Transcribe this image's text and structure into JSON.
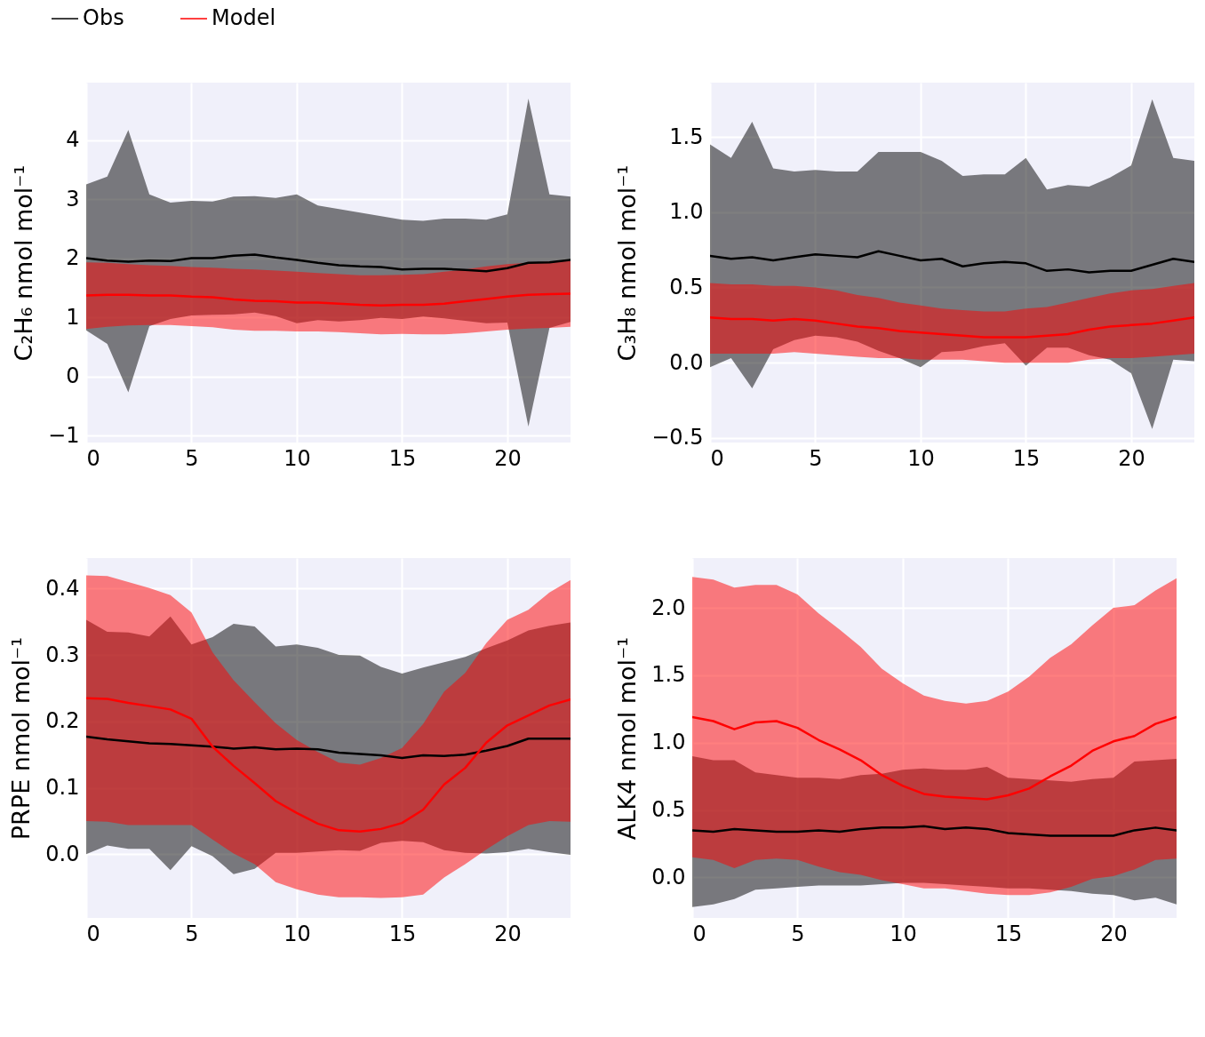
{
  "chart_data": [
    {
      "type": "line",
      "ylabel": "C₂H₆ nmol mol⁻¹",
      "legend": "top left",
      "grid": true,
      "x": [
        0,
        1,
        2,
        3,
        4,
        5,
        6,
        7,
        8,
        9,
        10,
        11,
        12,
        13,
        14,
        15,
        16,
        17,
        18,
        19,
        20,
        21,
        22,
        23
      ],
      "xlim": [
        0,
        23
      ],
      "xticks": [
        0,
        5,
        10,
        15,
        20
      ],
      "ylim": [
        -1.12,
        4.97
      ],
      "yticks": [
        {
          "value": -1,
          "label": "−1"
        },
        0,
        1,
        2,
        3,
        4
      ],
      "series": [
        {
          "name": "Obs",
          "color": "#000000",
          "values": [
            2.0,
            1.96,
            1.94,
            1.96,
            1.95,
            2.0,
            2.0,
            2.04,
            2.06,
            2.01,
            1.97,
            1.92,
            1.88,
            1.86,
            1.85,
            1.81,
            1.82,
            1.82,
            1.8,
            1.78,
            1.83,
            1.92,
            1.93,
            1.97
          ],
          "upper": [
            3.25,
            3.38,
            4.17,
            3.08,
            2.94,
            2.97,
            2.96,
            3.04,
            3.05,
            3.02,
            3.08,
            2.89,
            2.83,
            2.77,
            2.71,
            2.65,
            2.63,
            2.67,
            2.67,
            2.65,
            2.74,
            4.7,
            3.08,
            3.04
          ],
          "lower": [
            0.78,
            0.55,
            -0.27,
            0.85,
            0.97,
            1.03,
            1.04,
            1.05,
            1.08,
            1.02,
            0.9,
            0.95,
            0.93,
            0.95,
            0.99,
            0.97,
            1.01,
            0.98,
            0.94,
            0.9,
            0.91,
            -0.85,
            0.82,
            0.92
          ]
        },
        {
          "name": "Model",
          "color": "#ff0000",
          "values": [
            1.37,
            1.38,
            1.38,
            1.37,
            1.37,
            1.35,
            1.34,
            1.3,
            1.28,
            1.27,
            1.25,
            1.25,
            1.23,
            1.21,
            1.2,
            1.21,
            1.21,
            1.23,
            1.27,
            1.31,
            1.35,
            1.38,
            1.39,
            1.4
          ],
          "upper": [
            1.93,
            1.92,
            1.9,
            1.88,
            1.87,
            1.85,
            1.84,
            1.82,
            1.81,
            1.79,
            1.77,
            1.75,
            1.73,
            1.71,
            1.71,
            1.72,
            1.73,
            1.77,
            1.81,
            1.86,
            1.9,
            1.92,
            1.94,
            1.97
          ],
          "lower": [
            0.8,
            0.84,
            0.86,
            0.87,
            0.87,
            0.85,
            0.83,
            0.79,
            0.77,
            0.77,
            0.76,
            0.76,
            0.75,
            0.73,
            0.71,
            0.72,
            0.71,
            0.71,
            0.73,
            0.76,
            0.79,
            0.81,
            0.82,
            0.84
          ]
        }
      ]
    },
    {
      "type": "line",
      "ylabel": "C₃H₈ nmol mol⁻¹",
      "grid": true,
      "x": [
        0,
        1,
        2,
        3,
        4,
        5,
        6,
        7,
        8,
        9,
        10,
        11,
        12,
        13,
        14,
        15,
        16,
        17,
        18,
        19,
        20,
        21,
        22,
        23
      ],
      "xlim": [
        0,
        23
      ],
      "xticks": [
        0,
        5,
        10,
        15,
        20
      ],
      "ylim": [
        -0.53,
        1.86
      ],
      "yticks": [
        {
          "value": -0.5,
          "label": "−0.5"
        },
        {
          "value": 0,
          "label": "0.0"
        },
        0.5,
        {
          "value": 1,
          "label": "1.0"
        },
        1.5
      ],
      "series": [
        {
          "color": "#000000",
          "values": [
            0.71,
            0.69,
            0.7,
            0.68,
            0.7,
            0.72,
            0.71,
            0.7,
            0.74,
            0.71,
            0.68,
            0.69,
            0.64,
            0.66,
            0.67,
            0.66,
            0.61,
            0.62,
            0.6,
            0.61,
            0.61,
            0.65,
            0.69,
            0.67
          ],
          "upper": [
            1.45,
            1.36,
            1.6,
            1.29,
            1.27,
            1.28,
            1.27,
            1.27,
            1.4,
            1.4,
            1.4,
            1.34,
            1.24,
            1.25,
            1.25,
            1.36,
            1.15,
            1.18,
            1.17,
            1.23,
            1.31,
            1.75,
            1.36,
            1.34
          ],
          "lower": [
            -0.03,
            0.03,
            -0.17,
            0.09,
            0.15,
            0.18,
            0.17,
            0.14,
            0.08,
            0.03,
            -0.03,
            0.07,
            0.08,
            0.11,
            0.13,
            -0.02,
            0.1,
            0.1,
            0.05,
            0.02,
            -0.07,
            -0.44,
            0.02,
            0.01
          ]
        },
        {
          "color": "#ff0000",
          "values": [
            0.3,
            0.29,
            0.29,
            0.28,
            0.29,
            0.28,
            0.26,
            0.24,
            0.23,
            0.21,
            0.2,
            0.19,
            0.18,
            0.17,
            0.17,
            0.17,
            0.18,
            0.19,
            0.22,
            0.24,
            0.25,
            0.26,
            0.28,
            0.3
          ],
          "upper": [
            0.53,
            0.52,
            0.52,
            0.51,
            0.51,
            0.5,
            0.48,
            0.45,
            0.43,
            0.4,
            0.38,
            0.36,
            0.35,
            0.34,
            0.34,
            0.36,
            0.37,
            0.4,
            0.43,
            0.46,
            0.48,
            0.49,
            0.51,
            0.53
          ],
          "lower": [
            0.06,
            0.06,
            0.06,
            0.06,
            0.07,
            0.06,
            0.05,
            0.04,
            0.03,
            0.03,
            0.02,
            0.02,
            0.02,
            0.01,
            0.0,
            0.0,
            0.0,
            0.0,
            0.02,
            0.03,
            0.03,
            0.04,
            0.05,
            0.06
          ]
        }
      ]
    },
    {
      "type": "line",
      "ylabel": "PRPE nmol mol⁻¹",
      "grid": true,
      "x": [
        0,
        1,
        2,
        3,
        4,
        5,
        6,
        7,
        8,
        9,
        10,
        11,
        12,
        13,
        14,
        15,
        16,
        17,
        18,
        19,
        20,
        21,
        22,
        23
      ],
      "xlim": [
        0,
        23
      ],
      "xticks": [
        0,
        5,
        10,
        15,
        20
      ],
      "ylim": [
        -0.096,
        0.446
      ],
      "yticks": [
        {
          "value": 0,
          "label": "0.0"
        },
        0.1,
        0.2,
        0.3,
        0.4
      ],
      "series": [
        {
          "color": "#000000",
          "values": [
            0.177,
            0.173,
            0.17,
            0.167,
            0.166,
            0.164,
            0.162,
            0.159,
            0.161,
            0.158,
            0.159,
            0.158,
            0.153,
            0.151,
            0.149,
            0.145,
            0.149,
            0.148,
            0.15,
            0.156,
            0.163,
            0.174,
            0.174,
            0.174
          ],
          "upper": [
            0.353,
            0.335,
            0.334,
            0.328,
            0.358,
            0.316,
            0.327,
            0.347,
            0.343,
            0.313,
            0.316,
            0.311,
            0.3,
            0.299,
            0.282,
            0.272,
            0.281,
            0.289,
            0.297,
            0.31,
            0.322,
            0.337,
            0.344,
            0.349
          ],
          "lower": [
            0.0,
            0.013,
            0.008,
            0.008,
            -0.024,
            0.012,
            -0.003,
            -0.03,
            -0.022,
            0.002,
            0.002,
            0.004,
            0.006,
            0.005,
            0.017,
            0.02,
            0.018,
            0.006,
            0.002,
            0.001,
            0.003,
            0.008,
            0.003,
            -0.001
          ]
        },
        {
          "color": "#ff0000",
          "values": [
            0.235,
            0.234,
            0.228,
            0.223,
            0.218,
            0.204,
            0.162,
            0.133,
            0.107,
            0.08,
            0.062,
            0.046,
            0.036,
            0.034,
            0.038,
            0.047,
            0.067,
            0.105,
            0.13,
            0.168,
            0.194,
            0.209,
            0.224,
            0.233
          ],
          "upper": [
            0.42,
            0.419,
            0.41,
            0.401,
            0.39,
            0.364,
            0.304,
            0.262,
            0.229,
            0.197,
            0.172,
            0.154,
            0.138,
            0.135,
            0.145,
            0.16,
            0.196,
            0.245,
            0.273,
            0.318,
            0.353,
            0.368,
            0.394,
            0.413
          ],
          "lower": [
            0.05,
            0.049,
            0.044,
            0.044,
            0.044,
            0.044,
            0.022,
            0.001,
            -0.015,
            -0.042,
            -0.053,
            -0.061,
            -0.065,
            -0.065,
            -0.066,
            -0.065,
            -0.061,
            -0.035,
            -0.015,
            0.007,
            0.027,
            0.044,
            0.05,
            0.049
          ]
        }
      ]
    },
    {
      "type": "line",
      "ylabel": "ALK4 nmol mol⁻¹",
      "grid": true,
      "x": [
        0,
        1,
        2,
        3,
        4,
        5,
        6,
        7,
        8,
        9,
        10,
        11,
        12,
        13,
        14,
        15,
        16,
        17,
        18,
        19,
        20,
        21,
        22,
        23
      ],
      "xlim": [
        0,
        23
      ],
      "xticks": [
        0,
        5,
        10,
        15,
        20
      ],
      "ylim": [
        -0.3,
        2.37
      ],
      "yticks": [
        {
          "value": 0,
          "label": "0.0"
        },
        0.5,
        {
          "value": 1,
          "label": "1.0"
        },
        1.5,
        {
          "value": 2,
          "label": "2.0"
        }
      ],
      "series": [
        {
          "color": "#000000",
          "values": [
            0.35,
            0.34,
            0.36,
            0.35,
            0.34,
            0.34,
            0.35,
            0.34,
            0.36,
            0.37,
            0.37,
            0.38,
            0.36,
            0.37,
            0.36,
            0.33,
            0.32,
            0.31,
            0.31,
            0.31,
            0.31,
            0.35,
            0.37,
            0.35
          ],
          "upper": [
            0.9,
            0.87,
            0.87,
            0.78,
            0.76,
            0.74,
            0.74,
            0.73,
            0.76,
            0.77,
            0.8,
            0.81,
            0.8,
            0.8,
            0.82,
            0.74,
            0.73,
            0.72,
            0.71,
            0.73,
            0.74,
            0.86,
            0.87,
            0.88
          ],
          "lower": [
            -0.22,
            -0.2,
            -0.16,
            -0.09,
            -0.08,
            -0.07,
            -0.06,
            -0.06,
            -0.06,
            -0.05,
            -0.04,
            -0.04,
            -0.05,
            -0.06,
            -0.07,
            -0.08,
            -0.08,
            -0.09,
            -0.1,
            -0.12,
            -0.13,
            -0.17,
            -0.15,
            -0.2
          ]
        },
        {
          "color": "#ff0000",
          "values": [
            1.19,
            1.16,
            1.1,
            1.15,
            1.16,
            1.11,
            1.02,
            0.95,
            0.87,
            0.76,
            0.68,
            0.62,
            0.6,
            0.59,
            0.58,
            0.61,
            0.66,
            0.75,
            0.83,
            0.94,
            1.01,
            1.05,
            1.14,
            1.19
          ],
          "upper": [
            2.23,
            2.21,
            2.15,
            2.17,
            2.17,
            2.1,
            1.96,
            1.84,
            1.71,
            1.55,
            1.44,
            1.35,
            1.31,
            1.29,
            1.31,
            1.38,
            1.49,
            1.63,
            1.73,
            1.87,
            2.0,
            2.02,
            2.13,
            2.22
          ],
          "lower": [
            0.15,
            0.13,
            0.07,
            0.13,
            0.14,
            0.13,
            0.08,
            0.04,
            0.02,
            -0.02,
            -0.05,
            -0.08,
            -0.08,
            -0.1,
            -0.12,
            -0.13,
            -0.13,
            -0.11,
            -0.07,
            -0.01,
            0.01,
            0.06,
            0.13,
            0.14
          ]
        }
      ]
    }
  ]
}
